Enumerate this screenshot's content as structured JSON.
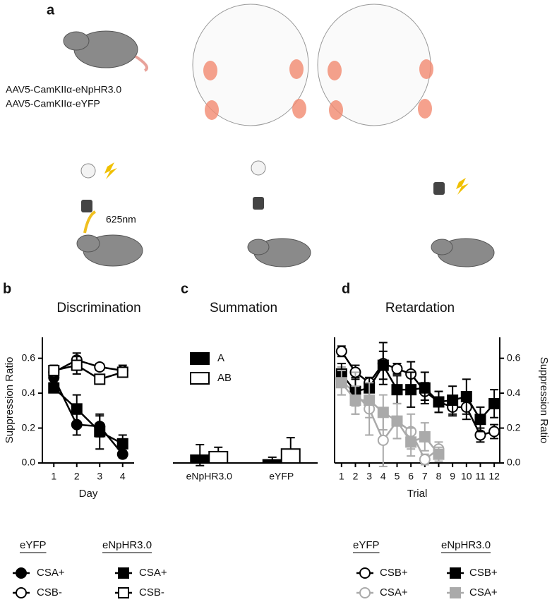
{
  "figure": {
    "panel_labels": [
      "a",
      "b",
      "c",
      "d"
    ],
    "injection_labels": [
      "AAV5-CamKIIα-eNpHR3.0",
      "AAV5-CamKIIα-eYFP"
    ],
    "light_label": "625nm"
  },
  "chart_data": [
    {
      "type": "line",
      "title": "Discrimination",
      "xlabel": "Day",
      "ylabel": "Suppression Ratio",
      "x": [
        1,
        2,
        3,
        4
      ],
      "xlim": [
        0.5,
        4.5
      ],
      "xticks": [
        1,
        2,
        3,
        4
      ],
      "ylim": [
        0,
        0.72
      ],
      "yticks": [
        {
          "value": 0,
          "label": "0.0"
        },
        0.2,
        0.4,
        0.6
      ],
      "yaxis_position": "left",
      "series_groups": [
        {
          "name": "eYFP",
          "series": [
            {
              "name": "CSA+",
              "color": "#000000",
              "marker": "circle",
              "filled": true,
              "values": [
                0.49,
                0.22,
                0.21,
                0.05
              ],
              "errors": [
                0.03,
                0.06,
                0.06,
                0.02
              ]
            },
            {
              "name": "CSB-",
              "color": "#000000",
              "marker": "circle",
              "filled": false,
              "values": [
                0.52,
                0.59,
                0.55,
                0.53
              ],
              "errors": [
                0.03,
                0.04,
                0.02,
                0.03
              ]
            }
          ]
        },
        {
          "name": "eNpHR3.0",
          "series": [
            {
              "name": "CSA+",
              "color": "#000000",
              "marker": "square",
              "filled": true,
              "values": [
                0.43,
                0.31,
                0.18,
                0.11
              ],
              "errors": [
                0.02,
                0.08,
                0.1,
                0.05
              ]
            },
            {
              "name": "CSB-",
              "color": "#000000",
              "marker": "square",
              "filled": false,
              "values": [
                0.53,
                0.56,
                0.48,
                0.52
              ],
              "errors": [
                0.03,
                0.05,
                0.02,
                0.02
              ]
            }
          ]
        }
      ]
    },
    {
      "type": "bar",
      "title": "Summation",
      "categories": [
        "eNpHR3.0",
        "eYFP"
      ],
      "ylim": [
        0,
        0.72
      ],
      "series": [
        {
          "name": "A",
          "color": "#000000",
          "filled": true,
          "values": [
            0.045,
            0.018
          ],
          "errors": [
            0.06,
            0.015
          ]
        },
        {
          "name": "AB",
          "color": "#000000",
          "filled": false,
          "values": [
            0.065,
            0.08
          ],
          "errors": [
            0.025,
            0.065
          ]
        }
      ]
    },
    {
      "type": "line",
      "title": "Retardation",
      "xlabel": "Trial",
      "ylabel": "Suppression Ratio",
      "x": [
        1,
        2,
        3,
        4,
        5,
        6,
        7,
        8,
        9,
        10,
        11,
        12
      ],
      "xlim": [
        0.5,
        12.4
      ],
      "xticks": [
        1,
        2,
        3,
        4,
        5,
        6,
        7,
        8,
        9,
        10,
        11,
        12
      ],
      "ylim": [
        0,
        0.72
      ],
      "yticks": [
        {
          "value": 0,
          "label": "0.0"
        },
        0.2,
        0.4,
        0.6
      ],
      "yaxis_position": "right",
      "series_groups": [
        {
          "name": "eYFP",
          "series": [
            {
              "name": "CSB+",
              "color": "#000000",
              "marker": "circle",
              "filled": false,
              "values": [
                0.64,
                0.52,
                0.46,
                0.57,
                0.54,
                0.51,
                0.41,
                0.35,
                0.32,
                0.32,
                0.16,
                0.18
              ],
              "errors": [
                0.03,
                0.04,
                0.03,
                0.12,
                0.03,
                0.07,
                0.05,
                0.06,
                0.05,
                0.07,
                0.04,
                0.04
              ]
            },
            {
              "name": "CSA+",
              "color": "#aaaaaa",
              "marker": "circle",
              "filled": false,
              "values": [
                0.47,
                0.4,
                0.31,
                0.13,
                0.24,
                0.18,
                0.02,
                0.08,
                null,
                null,
                null,
                null
              ],
              "errors": [
                0.08,
                0.12,
                0.15,
                0.15,
                0.1,
                0.1,
                0.03,
                0.04,
                null,
                null,
                null,
                null
              ]
            }
          ]
        },
        {
          "name": "eNpHR3.0",
          "series": [
            {
              "name": "CSB+",
              "color": "#000000",
              "marker": "square",
              "filled": true,
              "values": [
                0.51,
                0.41,
                0.43,
                0.56,
                0.42,
                0.42,
                0.43,
                0.35,
                0.36,
                0.38,
                0.25,
                0.34
              ],
              "errors": [
                0.06,
                0.08,
                0.06,
                0.08,
                0.08,
                0.1,
                0.09,
                0.06,
                0.08,
                0.1,
                0.07,
                0.08
              ]
            },
            {
              "name": "CSA+",
              "color": "#aaaaaa",
              "marker": "square",
              "filled": true,
              "values": [
                0.46,
                0.36,
                0.36,
                0.29,
                0.24,
                0.12,
                0.15,
                0.05,
                null,
                null,
                null,
                null
              ],
              "errors": [
                0.07,
                0.08,
                0.1,
                0.1,
                0.1,
                0.08,
                0.08,
                0.04,
                null,
                null,
                null,
                null
              ]
            }
          ]
        }
      ]
    }
  ]
}
